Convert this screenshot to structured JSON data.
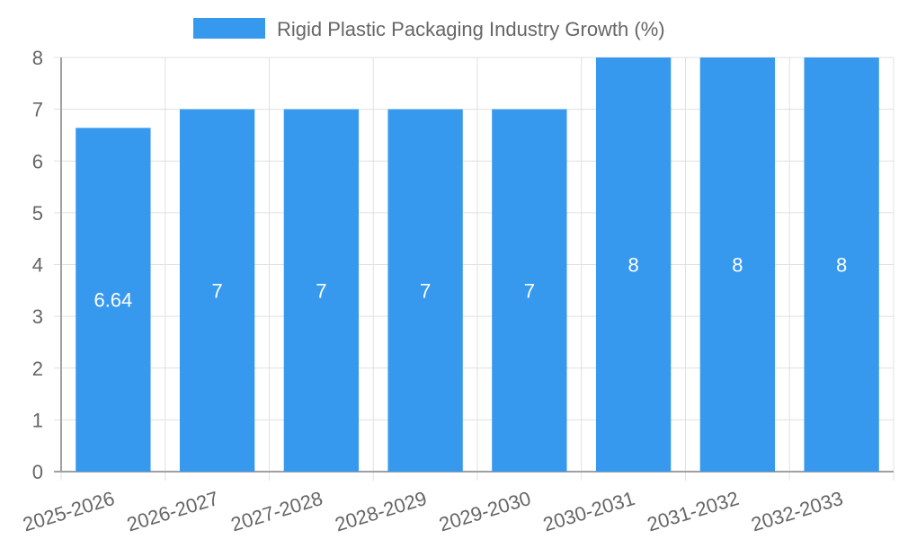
{
  "chart_data": {
    "type": "bar",
    "title": "",
    "xlabel": "",
    "ylabel": "",
    "categories": [
      "2025-2026",
      "2026-2027",
      "2027-2028",
      "2028-2029",
      "2029-2030",
      "2030-2031",
      "2031-2032",
      "2032-2033"
    ],
    "series": [
      {
        "name": "Rigid Plastic Packaging Industry Growth (%)",
        "values": [
          6.64,
          7,
          7,
          7,
          7,
          8,
          8,
          8
        ],
        "data_labels": [
          "6.64",
          "7",
          "7",
          "7",
          "7",
          "8",
          "8",
          "8"
        ],
        "color": "#3799ee"
      }
    ],
    "ylim": [
      0,
      8
    ],
    "yticks": [
      "0",
      "1",
      "2",
      "3",
      "4",
      "5",
      "6",
      "7",
      "8"
    ],
    "grid": true,
    "legend_position": "top-center"
  },
  "colors": {
    "bar": "#3799ee",
    "grid": "#e0e0e0",
    "axis": "#a0a0a0",
    "text": "#666666",
    "label": "#ffffff"
  }
}
